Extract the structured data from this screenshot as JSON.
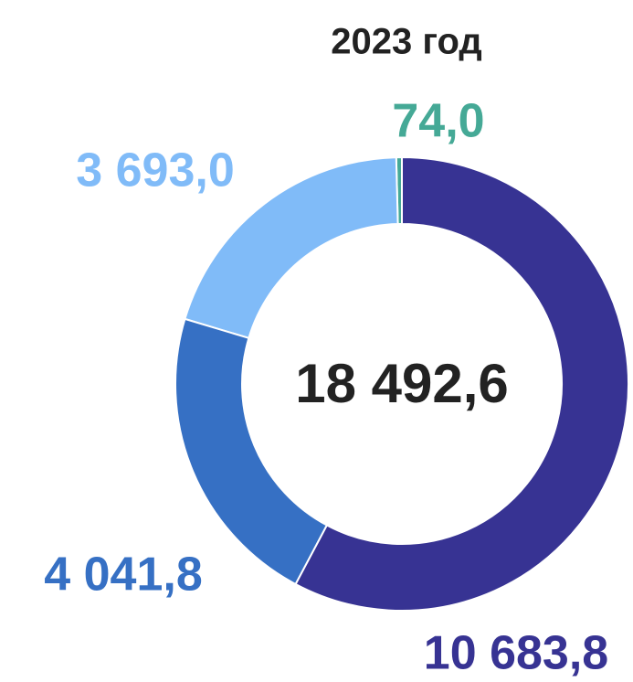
{
  "chart_data": {
    "type": "donut",
    "title": "2023 год",
    "center_label": "18 492,6",
    "categories": [
      null,
      null,
      null,
      null
    ],
    "values": [
      10683.8,
      4041.8,
      3693.0,
      74.0
    ],
    "value_labels": [
      "10 683,8",
      "4 041,8",
      "3 693,0",
      "74,0"
    ],
    "colors": [
      "#373393",
      "#3670c4",
      "#80bbf8",
      "#45a996"
    ]
  }
}
